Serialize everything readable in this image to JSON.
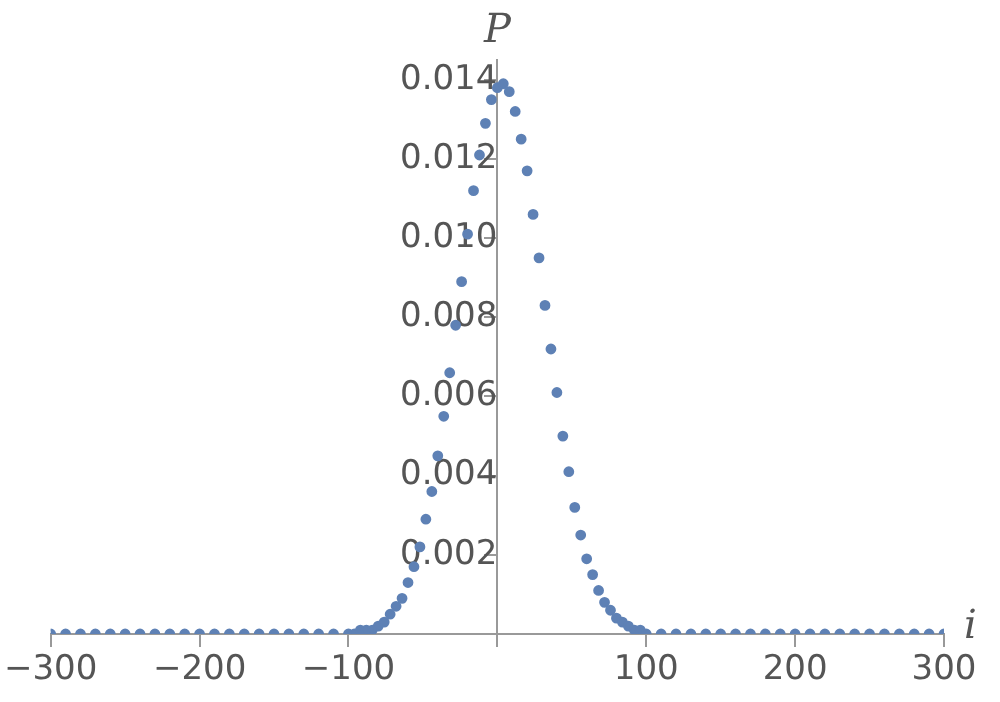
{
  "chart_data": {
    "type": "scatter",
    "xlabel": "i",
    "ylabel": "P",
    "xlim": [
      -300,
      300
    ],
    "ylim": [
      0,
      0.0145
    ],
    "xticks": [
      {
        "value": -300,
        "label": "−300"
      },
      {
        "value": -200,
        "label": "−200"
      },
      {
        "value": -100,
        "label": "−100"
      },
      {
        "value": 0,
        "label": null
      },
      {
        "value": 100,
        "label": "100"
      },
      {
        "value": 200,
        "label": "200"
      },
      {
        "value": 300,
        "label": "300"
      }
    ],
    "yticks": [
      {
        "value": 0,
        "label": null
      },
      {
        "value": 0.002,
        "label": "0.002"
      },
      {
        "value": 0.004,
        "label": "0.004"
      },
      {
        "value": 0.006,
        "label": "0.006"
      },
      {
        "value": 0.008,
        "label": "0.008"
      },
      {
        "value": 0.01,
        "label": "0.010"
      },
      {
        "value": 0.012,
        "label": "0.012"
      },
      {
        "value": 0.014,
        "label": "0.014"
      }
    ],
    "grid": false,
    "marker": "circle",
    "series": [
      {
        "color": "#5e81b5",
        "x": [
          -300,
          -290,
          -280,
          -270,
          -260,
          -250,
          -240,
          -230,
          -220,
          -210,
          -200,
          -190,
          -180,
          -170,
          -160,
          -150,
          -140,
          -130,
          -120,
          -110,
          -100,
          -96,
          -92,
          -88,
          -84,
          -80,
          -76,
          -72,
          -68,
          -64,
          -60,
          -56,
          -52,
          -48,
          -44,
          -40,
          -36,
          -32,
          -28,
          -24,
          -20,
          -16,
          -12,
          -8,
          -4,
          0,
          4,
          8,
          12,
          16,
          20,
          24,
          28,
          32,
          36,
          40,
          44,
          48,
          52,
          56,
          60,
          64,
          68,
          72,
          76,
          80,
          84,
          88,
          92,
          96,
          100,
          110,
          120,
          130,
          140,
          150,
          160,
          170,
          180,
          190,
          200,
          210,
          220,
          230,
          240,
          250,
          260,
          270,
          280,
          290,
          300
        ],
        "values": [
          0,
          0,
          0,
          0,
          0,
          0,
          0,
          0,
          0,
          0,
          0,
          0,
          0,
          0,
          0,
          0,
          0,
          0,
          0,
          0,
          0,
          0.0,
          0.0001,
          0.0001,
          0.0001,
          0.0002,
          0.0003,
          0.0005,
          0.0007,
          0.0009,
          0.0013,
          0.0017,
          0.0022,
          0.0029,
          0.0036,
          0.0045,
          0.0055,
          0.0066,
          0.0078,
          0.0089,
          0.0101,
          0.0112,
          0.0121,
          0.0129,
          0.0135,
          0.0138,
          0.0139,
          0.0137,
          0.0132,
          0.0125,
          0.0117,
          0.0106,
          0.0095,
          0.0083,
          0.0072,
          0.0061,
          0.005,
          0.0041,
          0.0032,
          0.0025,
          0.0019,
          0.0015,
          0.0011,
          0.0008,
          0.0006,
          0.0004,
          0.0003,
          0.0002,
          0.0001,
          0.0001,
          0,
          0,
          0,
          0,
          0,
          0,
          0,
          0,
          0,
          0,
          0,
          0,
          0,
          0,
          0,
          0,
          0,
          0,
          0,
          0,
          0
        ]
      }
    ]
  }
}
